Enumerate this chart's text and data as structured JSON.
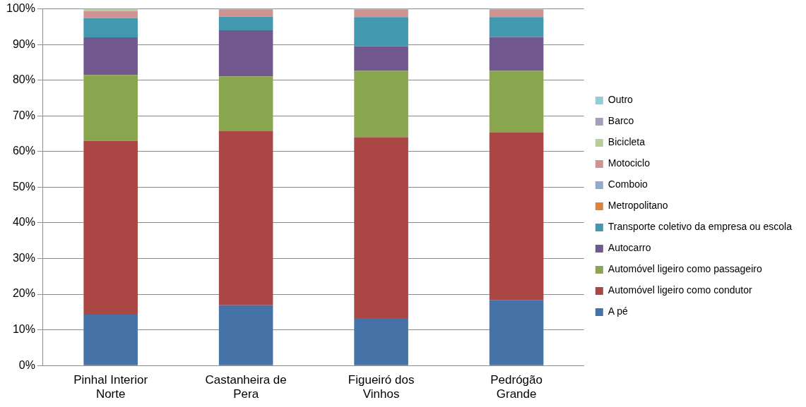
{
  "chart_data": {
    "type": "bar",
    "stacked": true,
    "categories": [
      "Pinhal Interior Norte",
      "Castanheira de Pera",
      "Figueiró dos Vinhos",
      "Pedrógão Grande"
    ],
    "series": [
      {
        "name": "A pé",
        "color": "#4572a7",
        "values": [
          14.3,
          16.9,
          13.3,
          18.3
        ]
      },
      {
        "name": "Automóvel ligeiro como condutor",
        "color": "#aa4643",
        "values": [
          48.7,
          48.9,
          50.7,
          47.0
        ]
      },
      {
        "name": "Automóvel ligeiro como passageiro",
        "color": "#89a54e",
        "values": [
          18.5,
          15.3,
          18.6,
          17.3
        ]
      },
      {
        "name": "Autocarro",
        "color": "#71588f",
        "values": [
          10.5,
          12.9,
          6.9,
          9.5
        ]
      },
      {
        "name": "Transporte coletivo da empresa ou escola",
        "color": "#4198af",
        "values": [
          5.4,
          3.8,
          8.2,
          5.6
        ]
      },
      {
        "name": "Metropolitano",
        "color": "#db843d",
        "values": [
          0,
          0,
          0,
          0
        ]
      },
      {
        "name": "Comboio",
        "color": "#93a9cf",
        "values": [
          0,
          0,
          0,
          0
        ]
      },
      {
        "name": "Motociclo",
        "color": "#d19392",
        "values": [
          2.0,
          1.9,
          2.0,
          2.0
        ]
      },
      {
        "name": "Bicicleta",
        "color": "#b9cd96",
        "values": [
          0.4,
          0,
          0,
          0
        ]
      },
      {
        "name": "Barco",
        "color": "#a99bbd",
        "values": [
          0.1,
          0,
          0,
          0
        ]
      },
      {
        "name": "Outro",
        "color": "#92cddc",
        "values": [
          0.1,
          0.3,
          0.3,
          0.3
        ]
      }
    ],
    "ylim": [
      0,
      100
    ],
    "yticks": [
      {
        "value": 0,
        "label": "0%"
      },
      {
        "value": 10,
        "label": "10%"
      },
      {
        "value": 20,
        "label": "20%"
      },
      {
        "value": 30,
        "label": "30%"
      },
      {
        "value": 40,
        "label": "40%"
      },
      {
        "value": 50,
        "label": "50%"
      },
      {
        "value": 60,
        "label": "60%"
      },
      {
        "value": 70,
        "label": "70%"
      },
      {
        "value": 80,
        "label": "80%"
      },
      {
        "value": 90,
        "label": "90%"
      },
      {
        "value": 100,
        "label": "100%"
      }
    ],
    "grid": "y",
    "legend": "right"
  }
}
